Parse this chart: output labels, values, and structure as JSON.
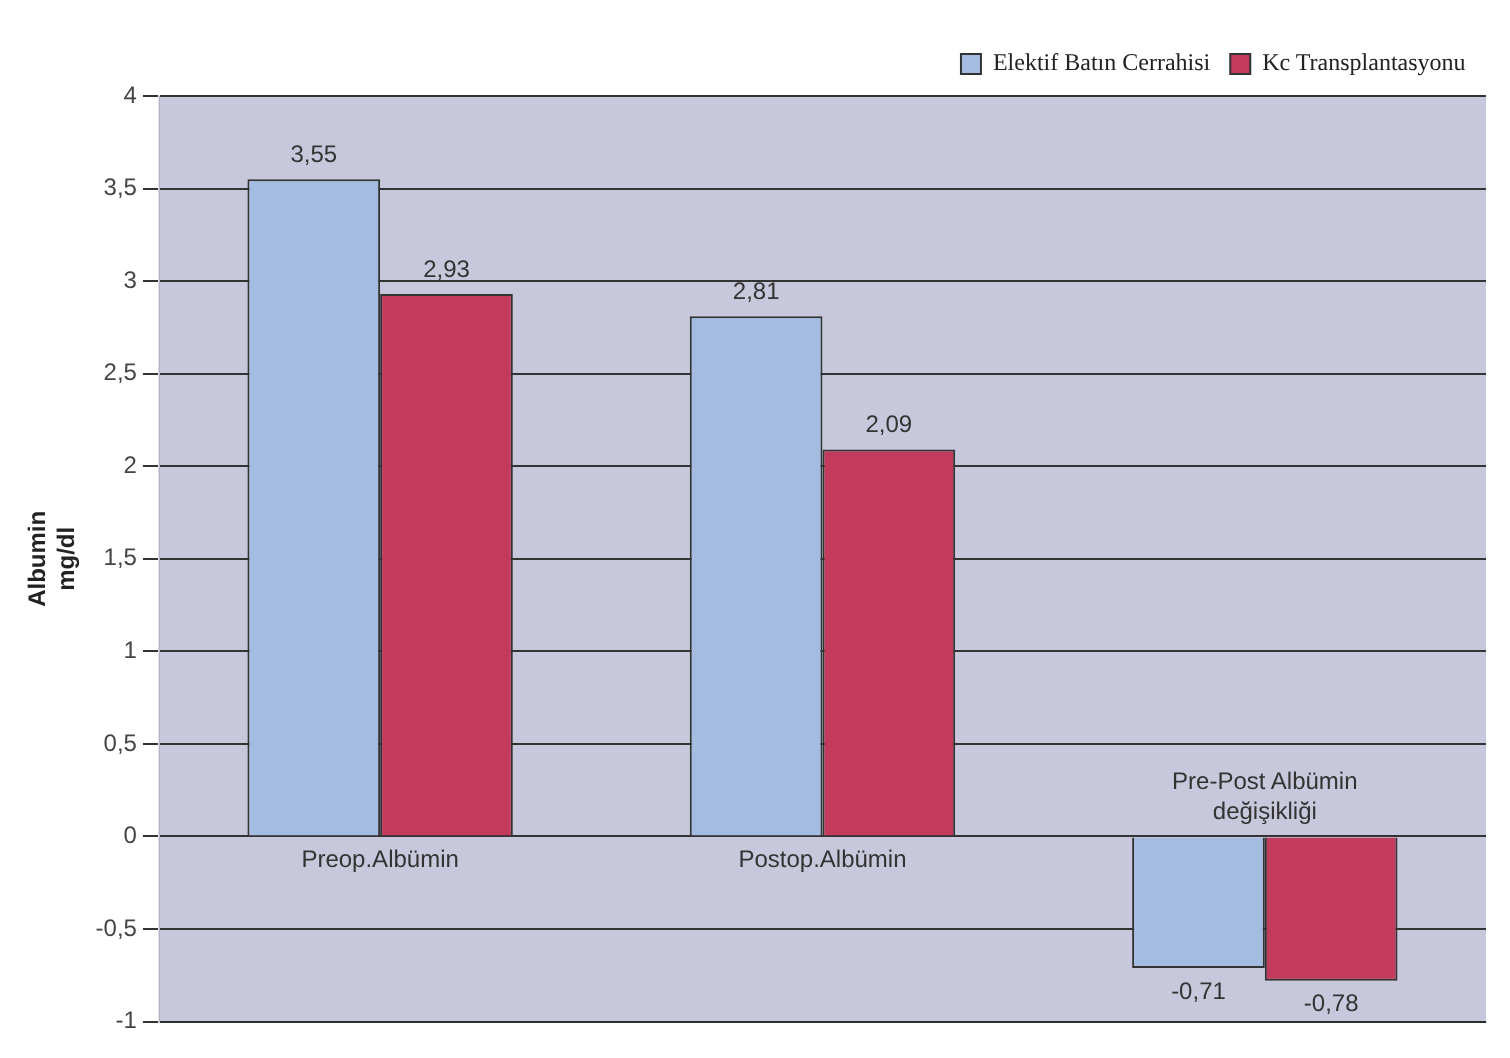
{
  "chart_data": {
    "type": "bar",
    "ylabel": "Albumin mg/dl",
    "categories": [
      "Preop.Albümin",
      "Postop.Albümin",
      "Pre-Post Albümin değişikliği"
    ],
    "series": [
      {
        "name": "Elektif Batın Cerrahisi",
        "color": "#a4bce0",
        "values": [
          3.55,
          2.81,
          -0.71
        ],
        "value_labels": [
          "3,55",
          "2,81",
          "-0,71"
        ]
      },
      {
        "name": "Kc Transplantasyonu",
        "color": "#c23a5c",
        "values": [
          2.93,
          2.09,
          -0.78
        ],
        "value_labels": [
          "2,93",
          "2,09",
          "-0,78"
        ]
      }
    ],
    "ylim": [
      -1,
      4
    ],
    "yticks": [
      {
        "value": -1,
        "label": "-1"
      },
      {
        "value": -0.5,
        "label": "-0,5"
      },
      {
        "value": 0,
        "label": "0"
      },
      {
        "value": 0.5,
        "label": "0,5"
      },
      {
        "value": 1,
        "label": "1"
      },
      {
        "value": 1.5,
        "label": "1,5"
      },
      {
        "value": 2,
        "label": "2"
      },
      {
        "value": 2.5,
        "label": "2,5"
      },
      {
        "value": 3,
        "label": "3"
      },
      {
        "value": 3.5,
        "label": "3,5"
      },
      {
        "value": 4,
        "label": "4"
      }
    ],
    "grid": "y",
    "legend": "top right"
  }
}
